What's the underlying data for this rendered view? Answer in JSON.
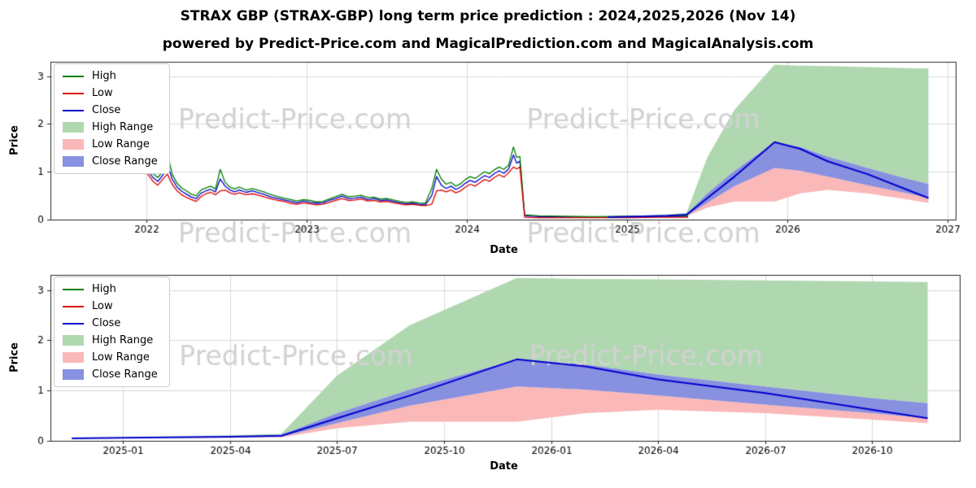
{
  "page": {
    "title": "STRAX GBP (STRAX-GBP) long term price prediction : 2024,2025,2026 (Nov 14)",
    "subtitle": "powered by Predict-Price.com and MagicalPrediction.com and MagicalAnalysis.com",
    "watermark": "Predict-Price.com"
  },
  "colors": {
    "high_line": "#008000",
    "low_line": "#dd0000",
    "close_line": "#0000cd",
    "high_range_fill": "#b0d8b0",
    "low_range_fill": "#fab8b8",
    "close_range_fill": "#8890e0",
    "grid": "#d9d9d9",
    "axis": "#262626",
    "watermark": "#d2d2d2",
    "tick_text": "#000000"
  },
  "legend": {
    "items": [
      {
        "label": "High",
        "type": "line",
        "color_key": "high_line"
      },
      {
        "label": "Low",
        "type": "line",
        "color_key": "low_line"
      },
      {
        "label": "Close",
        "type": "line",
        "color_key": "close_line"
      },
      {
        "label": "High Range",
        "type": "patch",
        "color_key": "high_range_fill"
      },
      {
        "label": "Low Range",
        "type": "patch",
        "color_key": "low_range_fill"
      },
      {
        "label": "Close Range",
        "type": "patch",
        "color_key": "close_range_fill"
      }
    ]
  },
  "chart_data": {
    "type": "line",
    "title": "STRAX GBP (STRAX-GBP) long term price prediction : 2024,2025,2026 (Nov 14)",
    "charts": [
      {
        "id": "top",
        "xlabel": "Date",
        "ylabel": "Price",
        "xlim": [
          2021.4,
          2027.05
        ],
        "ylim": [
          0,
          3.3
        ],
        "grid": true,
        "legend_position": "upper left",
        "xticks": [
          {
            "v": 2022,
            "label": "2022"
          },
          {
            "v": 2023,
            "label": "2023"
          },
          {
            "v": 2024,
            "label": "2024"
          },
          {
            "v": 2025,
            "label": "2025"
          },
          {
            "v": 2026,
            "label": "2026"
          },
          {
            "v": 2027,
            "label": "2027"
          }
        ],
        "yticks": [
          {
            "v": 0,
            "label": "0"
          },
          {
            "v": 1,
            "label": "1"
          },
          {
            "v": 2,
            "label": "2"
          },
          {
            "v": 3,
            "label": "3"
          }
        ],
        "series": [
          "historical",
          "prediction"
        ],
        "watermarks": [
          [
            0.27,
            0.38
          ],
          [
            0.655,
            0.38
          ],
          [
            0.27,
            1.1
          ],
          [
            0.655,
            1.1
          ]
        ]
      },
      {
        "id": "bottom",
        "xlabel": "Date",
        "ylabel": "Price",
        "xlim": [
          2024.83,
          2026.955
        ],
        "ylim": [
          0,
          3.3
        ],
        "grid": true,
        "legend_position": "upper left",
        "xticks": [
          {
            "v": 2025.0,
            "label": "2025-01"
          },
          {
            "v": 2025.25,
            "label": "2025-04"
          },
          {
            "v": 2025.5,
            "label": "2025-07"
          },
          {
            "v": 2025.75,
            "label": "2025-10"
          },
          {
            "v": 2026.0,
            "label": "2026-01"
          },
          {
            "v": 2026.25,
            "label": "2026-04"
          },
          {
            "v": 2026.5,
            "label": "2026-07"
          },
          {
            "v": 2026.75,
            "label": "2026-10"
          }
        ],
        "yticks": [
          {
            "v": 0,
            "label": "0"
          },
          {
            "v": 1,
            "label": "1"
          },
          {
            "v": 2,
            "label": "2"
          },
          {
            "v": 3,
            "label": "3"
          }
        ],
        "series": [
          "prediction"
        ],
        "watermarks": [
          [
            0.27,
            0.5
          ],
          [
            0.655,
            0.5
          ]
        ]
      }
    ],
    "historical": {
      "x": [
        2021.95,
        2021.98,
        2022.01,
        2022.04,
        2022.07,
        2022.1,
        2022.13,
        2022.16,
        2022.19,
        2022.22,
        2022.25,
        2022.28,
        2022.31,
        2022.34,
        2022.37,
        2022.4,
        2022.43,
        2022.46,
        2022.49,
        2022.52,
        2022.55,
        2022.58,
        2022.62,
        2022.66,
        2022.7,
        2022.74,
        2022.78,
        2022.82,
        2022.86,
        2022.9,
        2022.94,
        2022.98,
        2023.02,
        2023.06,
        2023.1,
        2023.14,
        2023.18,
        2023.22,
        2023.26,
        2023.3,
        2023.34,
        2023.38,
        2023.42,
        2023.46,
        2023.5,
        2023.54,
        2023.58,
        2023.62,
        2023.66,
        2023.7,
        2023.74,
        2023.78,
        2023.81,
        2023.84,
        2023.87,
        2023.9,
        2023.93,
        2023.96,
        2023.99,
        2024.02,
        2024.05,
        2024.08,
        2024.11,
        2024.14,
        2024.17,
        2024.2,
        2024.23,
        2024.26,
        2024.29,
        2024.31,
        2024.33,
        2024.36,
        2024.45,
        2024.6,
        2024.8,
        2025.0,
        2025.2,
        2025.38
      ],
      "high": [
        1.18,
        1.16,
        1.1,
        0.96,
        0.88,
        1.0,
        1.38,
        0.95,
        0.76,
        0.66,
        0.6,
        0.53,
        0.5,
        0.62,
        0.66,
        0.7,
        0.64,
        1.05,
        0.78,
        0.68,
        0.64,
        0.68,
        0.62,
        0.65,
        0.61,
        0.57,
        0.52,
        0.48,
        0.45,
        0.42,
        0.39,
        0.42,
        0.4,
        0.37,
        0.38,
        0.43,
        0.48,
        0.53,
        0.48,
        0.49,
        0.51,
        0.46,
        0.47,
        0.43,
        0.44,
        0.41,
        0.38,
        0.36,
        0.37,
        0.35,
        0.34,
        0.65,
        1.05,
        0.85,
        0.74,
        0.78,
        0.7,
        0.75,
        0.84,
        0.9,
        0.86,
        0.93,
        1.0,
        0.96,
        1.04,
        1.1,
        1.05,
        1.14,
        1.52,
        1.3,
        1.32,
        0.1,
        0.08,
        0.07,
        0.06,
        0.07,
        0.07,
        0.08
      ],
      "low": [
        1.0,
        1.04,
        0.94,
        0.8,
        0.72,
        0.84,
        0.95,
        0.74,
        0.6,
        0.52,
        0.46,
        0.42,
        0.38,
        0.48,
        0.54,
        0.57,
        0.52,
        0.6,
        0.62,
        0.56,
        0.53,
        0.56,
        0.52,
        0.54,
        0.51,
        0.47,
        0.43,
        0.4,
        0.38,
        0.34,
        0.32,
        0.35,
        0.33,
        0.31,
        0.32,
        0.36,
        0.4,
        0.44,
        0.4,
        0.41,
        0.43,
        0.39,
        0.4,
        0.37,
        0.38,
        0.35,
        0.33,
        0.31,
        0.32,
        0.3,
        0.29,
        0.32,
        0.6,
        0.62,
        0.58,
        0.62,
        0.56,
        0.6,
        0.68,
        0.74,
        0.7,
        0.77,
        0.84,
        0.8,
        0.88,
        0.94,
        0.89,
        0.98,
        1.1,
        1.06,
        1.1,
        0.05,
        0.04,
        0.04,
        0.04,
        0.04,
        0.05,
        0.05
      ],
      "close": [
        1.08,
        1.12,
        1.02,
        0.88,
        0.8,
        0.92,
        1.15,
        0.85,
        0.68,
        0.59,
        0.53,
        0.47,
        0.44,
        0.55,
        0.6,
        0.63,
        0.58,
        0.85,
        0.7,
        0.62,
        0.58,
        0.62,
        0.57,
        0.6,
        0.56,
        0.52,
        0.47,
        0.44,
        0.41,
        0.38,
        0.35,
        0.39,
        0.36,
        0.34,
        0.35,
        0.4,
        0.44,
        0.49,
        0.44,
        0.45,
        0.47,
        0.42,
        0.44,
        0.4,
        0.41,
        0.38,
        0.35,
        0.33,
        0.34,
        0.32,
        0.31,
        0.5,
        0.9,
        0.72,
        0.65,
        0.7,
        0.63,
        0.68,
        0.76,
        0.82,
        0.78,
        0.85,
        0.92,
        0.88,
        0.96,
        1.02,
        0.97,
        1.06,
        1.35,
        1.18,
        1.22,
        0.08,
        0.06,
        0.055,
        0.05,
        0.055,
        0.06,
        0.065
      ],
      "note": "historical High/Low/Close lines 2022 - mid 2024, collapse to ~0.05 after 2024-04"
    },
    "prediction": {
      "x": [
        2024.88,
        2025.0,
        2025.25,
        2025.37,
        2025.5,
        2025.67,
        2025.92,
        2026.08,
        2026.25,
        2026.5,
        2026.75,
        2026.88
      ],
      "high_top": [
        0.06,
        0.07,
        0.11,
        0.14,
        1.3,
        2.3,
        3.24,
        3.22,
        3.21,
        3.19,
        3.17,
        3.16
      ],
      "close_top": [
        0.055,
        0.065,
        0.09,
        0.12,
        0.55,
        1.02,
        1.62,
        1.52,
        1.32,
        1.08,
        0.85,
        0.75
      ],
      "close": [
        0.05,
        0.06,
        0.08,
        0.1,
        0.45,
        0.9,
        1.62,
        1.48,
        1.22,
        0.95,
        0.62,
        0.45
      ],
      "close_bottom": [
        0.045,
        0.055,
        0.07,
        0.08,
        0.35,
        0.7,
        1.08,
        1.02,
        0.9,
        0.72,
        0.55,
        0.45
      ],
      "low_bottom": [
        0.04,
        0.05,
        0.06,
        0.07,
        0.25,
        0.38,
        0.38,
        0.55,
        0.62,
        0.55,
        0.42,
        0.35
      ],
      "note": "predicted Close line with High/Low/Close range bands, peak close 1.62 near 2025-12, high range peak 3.24"
    }
  }
}
